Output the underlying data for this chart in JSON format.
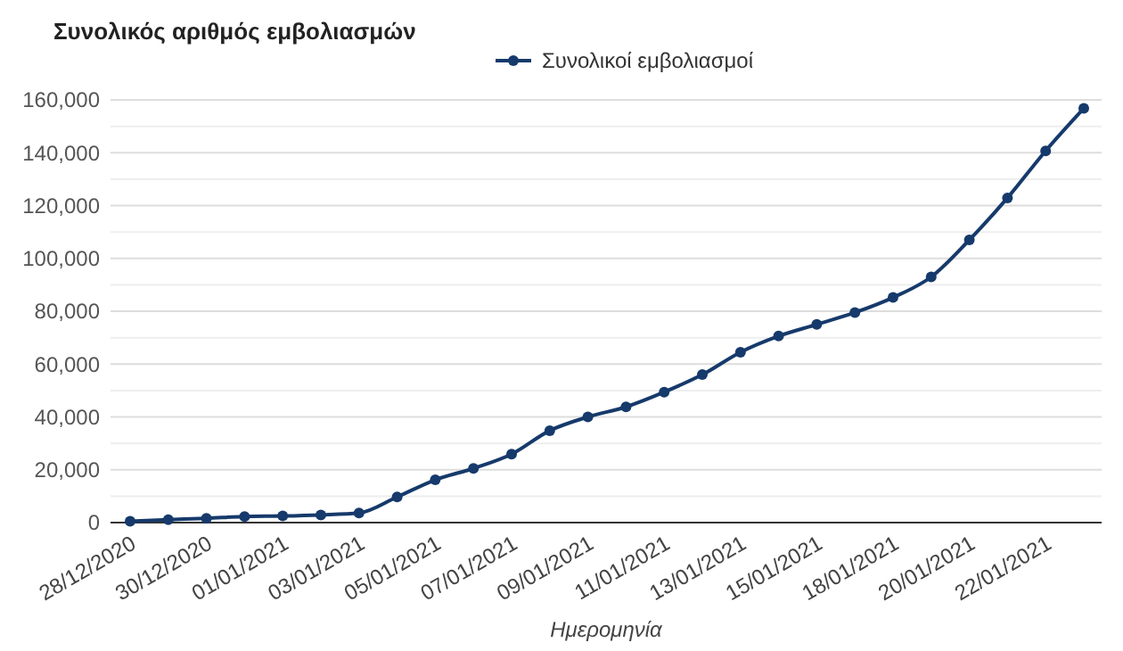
{
  "chart_data": {
    "type": "line",
    "title": "Συνολικός αριθμός εμβολιασμών",
    "xlabel": "Ημερομηνία",
    "categories": [
      "28/12/2020",
      null,
      "30/12/2020",
      null,
      "01/01/2021",
      null,
      "03/01/2021",
      null,
      "05/01/2021",
      null,
      "07/01/2021",
      null,
      "09/01/2021",
      null,
      "11/01/2021",
      null,
      "13/01/2021",
      null,
      "15/01/2021",
      null,
      "18/01/2021",
      null,
      "20/01/2021",
      null,
      "22/01/2021",
      null
    ],
    "series": [
      {
        "name": "Συνολικοί εμβολιασμοί",
        "color": "#163a6b",
        "values": [
          500,
          1100,
          1600,
          2300,
          2500,
          2900,
          3600,
          9700,
          16200,
          20500,
          25900,
          34800,
          40000,
          43800,
          49400,
          56000,
          64500,
          70600,
          75000,
          79500,
          85200,
          93000,
          107000,
          122900,
          140700,
          156800
        ]
      }
    ],
    "ylim": [
      0,
      160000
    ],
    "yticks": [
      0,
      {
        "value": 10000,
        "label": null
      },
      {
        "value": 20000,
        "label": "20,000"
      },
      {
        "value": 30000,
        "label": null
      },
      {
        "value": 40000,
        "label": "40,000"
      },
      {
        "value": 50000,
        "label": null
      },
      {
        "value": 60000,
        "label": "60,000"
      },
      {
        "value": 70000,
        "label": null
      },
      {
        "value": 80000,
        "label": "80,000"
      },
      {
        "value": 90000,
        "label": null
      },
      {
        "value": 100000,
        "label": "100,000"
      },
      {
        "value": 110000,
        "label": null
      },
      {
        "value": 120000,
        "label": "120,000"
      },
      {
        "value": 130000,
        "label": null
      },
      {
        "value": 140000,
        "label": "140,000"
      },
      {
        "value": 150000,
        "label": null
      },
      {
        "value": 160000,
        "label": "160,000"
      }
    ],
    "grid": "y",
    "legend": "top",
    "marker": "circle",
    "line_style": "solid"
  }
}
